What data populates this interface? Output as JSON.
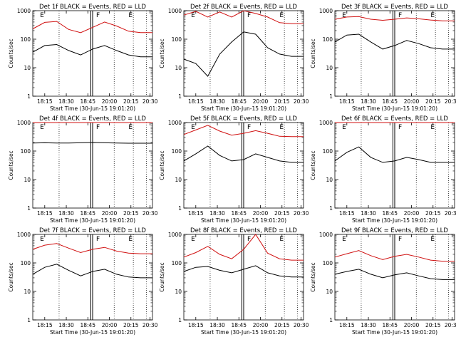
{
  "figure": {
    "xlabel": "Start Time (30-Jun-15 19:01:20)",
    "ylabel": "Counts/sec",
    "y_ticks": [
      "1",
      "10",
      "100",
      "1000"
    ],
    "x_ticks": [
      "18:15",
      "18:30",
      "18:45",
      "20:00",
      "20:15",
      "20:30"
    ],
    "marker_letters": [
      "E",
      "F",
      "E"
    ]
  },
  "colors": {
    "events": "#000000",
    "lld": "#d01010",
    "axes": "#000000"
  },
  "chart_data": [
    {
      "type": "line",
      "title": "Det 1f BLACK = Events, RED = LLD",
      "ylim": [
        1,
        1000
      ],
      "yscale": "log",
      "x": [
        0,
        10,
        20,
        30,
        40,
        50,
        60,
        70,
        80,
        90,
        100
      ],
      "series": [
        {
          "name": "LLD",
          "values": [
            230,
            390,
            420,
            220,
            170,
            260,
            400,
            290,
            190,
            170,
            170
          ]
        },
        {
          "name": "Events",
          "values": [
            35,
            60,
            65,
            40,
            28,
            45,
            60,
            40,
            28,
            24,
            24
          ]
        }
      ]
    },
    {
      "type": "line",
      "title": "Det 2f BLACK = Events, RED = LLD",
      "ylim": [
        1,
        1000
      ],
      "yscale": "log",
      "x": [
        0,
        10,
        20,
        30,
        40,
        50,
        60,
        70,
        80,
        90,
        100
      ],
      "series": [
        {
          "name": "LLD",
          "values": [
            700,
            950,
            600,
            900,
            600,
            1000,
            800,
            600,
            380,
            350,
            350
          ]
        },
        {
          "name": "Events",
          "values": [
            20,
            14,
            5,
            30,
            80,
            180,
            150,
            50,
            30,
            25,
            25
          ]
        }
      ]
    },
    {
      "type": "line",
      "title": "Det 3f BLACK = Events, RED = LLD",
      "ylim": [
        1,
        1000
      ],
      "yscale": "log",
      "x": [
        0,
        10,
        20,
        30,
        40,
        50,
        60,
        70,
        80,
        90,
        100
      ],
      "series": [
        {
          "name": "LLD",
          "values": [
            500,
            600,
            620,
            500,
            460,
            500,
            560,
            520,
            470,
            440,
            440
          ]
        },
        {
          "name": "Events",
          "values": [
            80,
            140,
            150,
            80,
            45,
            60,
            90,
            70,
            50,
            45,
            45
          ]
        }
      ]
    },
    {
      "type": "line",
      "title": "Det 4f BLACK = Events, RED = LLD",
      "ylim": [
        1,
        1000
      ],
      "yscale": "log",
      "x": [
        0,
        10,
        20,
        30,
        40,
        50,
        60,
        70,
        80,
        90,
        100
      ],
      "series": [
        {
          "name": "LLD",
          "values": [
            1000,
            1000,
            1000,
            1000,
            1000,
            1000,
            1000,
            1000,
            1000,
            1000,
            1000
          ]
        },
        {
          "name": "Events",
          "values": [
            190,
            195,
            190,
            192,
            195,
            200,
            195,
            190,
            188,
            188,
            188
          ]
        }
      ]
    },
    {
      "type": "line",
      "title": "Det 5f BLACK = Events, RED = LLD",
      "ylim": [
        1,
        1000
      ],
      "yscale": "log",
      "x": [
        0,
        10,
        20,
        30,
        40,
        50,
        60,
        70,
        80,
        90,
        100
      ],
      "series": [
        {
          "name": "LLD",
          "values": [
            380,
            550,
            800,
            500,
            360,
            420,
            520,
            420,
            330,
            320,
            320
          ]
        },
        {
          "name": "Events",
          "values": [
            45,
            80,
            150,
            70,
            45,
            50,
            80,
            60,
            45,
            40,
            40
          ]
        }
      ]
    },
    {
      "type": "line",
      "title": "Det 6f BLACK = Events, RED = LLD",
      "ylim": [
        1,
        1000
      ],
      "yscale": "log",
      "x": [
        0,
        10,
        20,
        30,
        40,
        50,
        60,
        70,
        80,
        90,
        100
      ],
      "series": [
        {
          "name": "LLD",
          "values": [
            1000,
            1000,
            1000,
            1000,
            1000,
            1000,
            1000,
            1000,
            1000,
            1000,
            1000
          ]
        },
        {
          "name": "Events",
          "values": [
            45,
            90,
            140,
            60,
            40,
            45,
            60,
            50,
            40,
            40,
            40
          ]
        }
      ]
    },
    {
      "type": "line",
      "title": "Det 7f BLACK = Events, RED = LLD",
      "ylim": [
        1,
        1000
      ],
      "yscale": "log",
      "x": [
        0,
        10,
        20,
        30,
        40,
        50,
        60,
        70,
        80,
        90,
        100
      ],
      "series": [
        {
          "name": "LLD",
          "values": [
            300,
            420,
            480,
            330,
            230,
            300,
            350,
            260,
            220,
            210,
            210
          ]
        },
        {
          "name": "Events",
          "values": [
            40,
            70,
            90,
            55,
            35,
            50,
            60,
            40,
            32,
            30,
            30
          ]
        }
      ]
    },
    {
      "type": "line",
      "title": "Det 8f BLACK = Events, RED = LLD",
      "ylim": [
        1,
        1000
      ],
      "yscale": "log",
      "x": [
        0,
        10,
        20,
        30,
        40,
        50,
        60,
        70,
        80,
        90,
        100
      ],
      "series": [
        {
          "name": "LLD",
          "values": [
            160,
            230,
            380,
            200,
            140,
            300,
            1000,
            220,
            140,
            125,
            125
          ]
        },
        {
          "name": "Events",
          "values": [
            50,
            70,
            75,
            55,
            45,
            60,
            80,
            45,
            35,
            32,
            32
          ]
        }
      ]
    },
    {
      "type": "line",
      "title": "Det 9f BLACK = Events, RED = LLD",
      "ylim": [
        1,
        1000
      ],
      "yscale": "log",
      "x": [
        0,
        10,
        20,
        30,
        40,
        50,
        60,
        70,
        80,
        90,
        100
      ],
      "series": [
        {
          "name": "LLD",
          "values": [
            160,
            210,
            270,
            180,
            130,
            170,
            200,
            160,
            125,
            115,
            115
          ]
        },
        {
          "name": "Events",
          "values": [
            40,
            50,
            60,
            40,
            30,
            38,
            45,
            35,
            28,
            26,
            26
          ]
        }
      ]
    }
  ]
}
